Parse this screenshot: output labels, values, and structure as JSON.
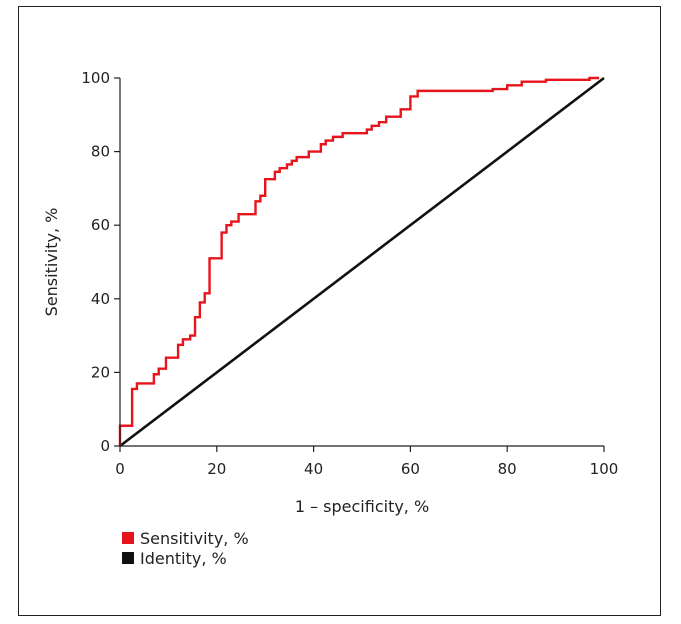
{
  "chart_data": {
    "type": "line",
    "title": "",
    "xlabel": "1 – specificity, %",
    "ylabel": "Sensitivity, %",
    "xlim": [
      0,
      100
    ],
    "ylim": [
      0,
      100
    ],
    "xticks": [
      0,
      20,
      40,
      60,
      80,
      100
    ],
    "yticks": [
      0,
      20,
      40,
      60,
      80,
      100
    ],
    "grid": false,
    "legend_position": "bottom-left",
    "series": [
      {
        "name": "Sensitivity, %",
        "color": "#e8141b",
        "step": true,
        "points": [
          [
            0,
            0
          ],
          [
            0,
            5.5
          ],
          [
            2.5,
            5.5
          ],
          [
            2.5,
            15.5
          ],
          [
            3.5,
            15.5
          ],
          [
            3.5,
            17
          ],
          [
            7,
            17
          ],
          [
            7,
            19.5
          ],
          [
            8,
            19.5
          ],
          [
            8,
            21
          ],
          [
            9.5,
            21
          ],
          [
            9.5,
            24
          ],
          [
            12,
            24
          ],
          [
            12,
            27.5
          ],
          [
            13,
            27.5
          ],
          [
            13,
            29
          ],
          [
            14.5,
            29
          ],
          [
            14.5,
            30
          ],
          [
            15.5,
            30
          ],
          [
            15.5,
            35
          ],
          [
            16.5,
            35
          ],
          [
            16.5,
            39
          ],
          [
            17.5,
            39
          ],
          [
            17.5,
            41.5
          ],
          [
            18.5,
            41.5
          ],
          [
            18.5,
            51
          ],
          [
            21,
            51
          ],
          [
            21,
            58
          ],
          [
            22,
            58
          ],
          [
            22,
            60
          ],
          [
            23,
            60
          ],
          [
            23,
            61
          ],
          [
            24.5,
            61
          ],
          [
            24.5,
            63
          ],
          [
            28,
            63
          ],
          [
            28,
            66.5
          ],
          [
            29,
            66.5
          ],
          [
            29,
            68
          ],
          [
            30,
            68
          ],
          [
            30,
            72.5
          ],
          [
            32,
            72.5
          ],
          [
            32,
            74.5
          ],
          [
            33,
            74.5
          ],
          [
            33,
            75.5
          ],
          [
            34.5,
            75.5
          ],
          [
            34.5,
            76.5
          ],
          [
            35.5,
            76.5
          ],
          [
            35.5,
            77.5
          ],
          [
            36.5,
            77.5
          ],
          [
            36.5,
            78.5
          ],
          [
            39,
            78.5
          ],
          [
            39,
            80
          ],
          [
            41.5,
            80
          ],
          [
            41.5,
            82
          ],
          [
            42.5,
            82
          ],
          [
            42.5,
            83
          ],
          [
            44,
            83
          ],
          [
            44,
            84
          ],
          [
            46,
            84
          ],
          [
            46,
            85
          ],
          [
            51,
            85
          ],
          [
            51,
            86
          ],
          [
            52,
            86
          ],
          [
            52,
            87
          ],
          [
            53.5,
            87
          ],
          [
            53.5,
            88
          ],
          [
            55,
            88
          ],
          [
            55,
            89.5
          ],
          [
            58,
            89.5
          ],
          [
            58,
            91.5
          ],
          [
            60,
            91.5
          ],
          [
            60,
            95
          ],
          [
            61.5,
            95
          ],
          [
            61.5,
            96.5
          ],
          [
            77,
            96.5
          ],
          [
            77,
            97
          ],
          [
            80,
            97
          ],
          [
            80,
            98
          ],
          [
            83,
            98
          ],
          [
            83,
            99
          ],
          [
            88,
            99
          ],
          [
            88,
            99.5
          ],
          [
            97,
            99.5
          ],
          [
            97,
            100
          ],
          [
            99,
            100
          ]
        ]
      },
      {
        "name": "Identity, %",
        "color": "#111111",
        "step": false,
        "points": [
          [
            0,
            0
          ],
          [
            100,
            100
          ]
        ]
      }
    ]
  }
}
